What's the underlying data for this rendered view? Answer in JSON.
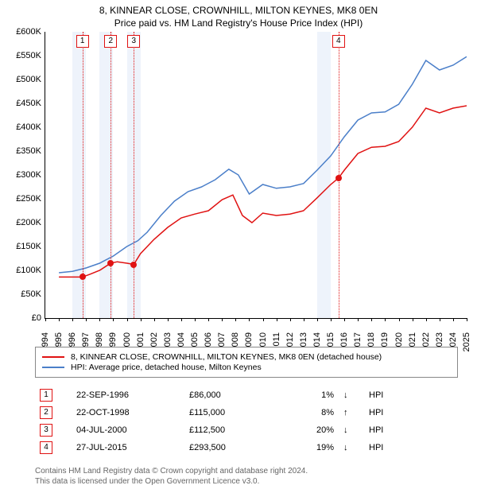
{
  "title_line1": "8, KINNEAR CLOSE, CROWNHILL, MILTON KEYNES, MK8 0EN",
  "title_line2": "Price paid vs. HM Land Registry's House Price Index (HPI)",
  "chart": {
    "type": "line",
    "x_min_year": 1994,
    "x_max_year": 2025,
    "y_min": 0,
    "y_max": 600000,
    "ytick_step": 50000,
    "y_prefix": "£",
    "y_suffix": "K",
    "colors": {
      "series_property": "#e01212",
      "series_hpi": "#4b7fc9",
      "shade": "#eef3fb",
      "axis": "#000000",
      "bg": "#ffffff"
    },
    "line_width": 1.5,
    "shaded_years": [
      1996,
      1998,
      2000,
      2014
    ],
    "series_property": [
      {
        "y": 1995.0,
        "v": 86000
      },
      {
        "y": 1996.73,
        "v": 86000
      },
      {
        "y": 1997.3,
        "v": 92000
      },
      {
        "y": 1998.0,
        "v": 100000
      },
      {
        "y": 1998.81,
        "v": 115000
      },
      {
        "y": 1999.3,
        "v": 118000
      },
      {
        "y": 2000.0,
        "v": 115000
      },
      {
        "y": 2000.51,
        "v": 112500
      },
      {
        "y": 2001.0,
        "v": 135000
      },
      {
        "y": 2002.0,
        "v": 165000
      },
      {
        "y": 2003.0,
        "v": 190000
      },
      {
        "y": 2004.0,
        "v": 210000
      },
      {
        "y": 2005.0,
        "v": 218000
      },
      {
        "y": 2006.0,
        "v": 225000
      },
      {
        "y": 2007.0,
        "v": 248000
      },
      {
        "y": 2007.8,
        "v": 258000
      },
      {
        "y": 2008.5,
        "v": 215000
      },
      {
        "y": 2009.2,
        "v": 200000
      },
      {
        "y": 2010.0,
        "v": 220000
      },
      {
        "y": 2011.0,
        "v": 215000
      },
      {
        "y": 2012.0,
        "v": 218000
      },
      {
        "y": 2013.0,
        "v": 225000
      },
      {
        "y": 2014.0,
        "v": 252000
      },
      {
        "y": 2015.0,
        "v": 280000
      },
      {
        "y": 2015.57,
        "v": 293500
      },
      {
        "y": 2016.0,
        "v": 310000
      },
      {
        "y": 2017.0,
        "v": 345000
      },
      {
        "y": 2018.0,
        "v": 358000
      },
      {
        "y": 2019.0,
        "v": 360000
      },
      {
        "y": 2020.0,
        "v": 370000
      },
      {
        "y": 2021.0,
        "v": 400000
      },
      {
        "y": 2022.0,
        "v": 440000
      },
      {
        "y": 2023.0,
        "v": 430000
      },
      {
        "y": 2024.0,
        "v": 440000
      },
      {
        "y": 2025.0,
        "v": 445000
      }
    ],
    "series_hpi": [
      {
        "y": 1995.0,
        "v": 95000
      },
      {
        "y": 1996.0,
        "v": 98000
      },
      {
        "y": 1997.0,
        "v": 105000
      },
      {
        "y": 1998.0,
        "v": 115000
      },
      {
        "y": 1999.0,
        "v": 130000
      },
      {
        "y": 2000.0,
        "v": 150000
      },
      {
        "y": 2000.8,
        "v": 162000
      },
      {
        "y": 2001.5,
        "v": 180000
      },
      {
        "y": 2002.5,
        "v": 215000
      },
      {
        "y": 2003.5,
        "v": 245000
      },
      {
        "y": 2004.5,
        "v": 265000
      },
      {
        "y": 2005.5,
        "v": 275000
      },
      {
        "y": 2006.5,
        "v": 290000
      },
      {
        "y": 2007.5,
        "v": 312000
      },
      {
        "y": 2008.2,
        "v": 300000
      },
      {
        "y": 2009.0,
        "v": 260000
      },
      {
        "y": 2010.0,
        "v": 280000
      },
      {
        "y": 2011.0,
        "v": 272000
      },
      {
        "y": 2012.0,
        "v": 275000
      },
      {
        "y": 2013.0,
        "v": 282000
      },
      {
        "y": 2014.0,
        "v": 310000
      },
      {
        "y": 2015.0,
        "v": 340000
      },
      {
        "y": 2016.0,
        "v": 380000
      },
      {
        "y": 2017.0,
        "v": 415000
      },
      {
        "y": 2018.0,
        "v": 430000
      },
      {
        "y": 2019.0,
        "v": 432000
      },
      {
        "y": 2020.0,
        "v": 448000
      },
      {
        "y": 2021.0,
        "v": 490000
      },
      {
        "y": 2022.0,
        "v": 540000
      },
      {
        "y": 2023.0,
        "v": 520000
      },
      {
        "y": 2024.0,
        "v": 530000
      },
      {
        "y": 2025.0,
        "v": 548000
      }
    ],
    "markers": [
      {
        "n": "1",
        "year": 1996.73,
        "v": 86000
      },
      {
        "n": "2",
        "year": 1998.81,
        "v": 115000
      },
      {
        "n": "3",
        "year": 2000.51,
        "v": 112500
      },
      {
        "n": "4",
        "year": 2015.57,
        "v": 293500
      }
    ]
  },
  "legend": {
    "row1": "8, KINNEAR CLOSE, CROWNHILL, MILTON KEYNES, MK8 0EN (detached house)",
    "row2": "HPI: Average price, detached house, Milton Keynes"
  },
  "events": [
    {
      "n": "1",
      "date": "22-SEP-1996",
      "price": "£86,000",
      "pct": "1%",
      "dir": "down",
      "tag": "HPI"
    },
    {
      "n": "2",
      "date": "22-OCT-1998",
      "price": "£115,000",
      "pct": "8%",
      "dir": "up",
      "tag": "HPI"
    },
    {
      "n": "3",
      "date": "04-JUL-2000",
      "price": "£112,500",
      "pct": "20%",
      "dir": "down",
      "tag": "HPI"
    },
    {
      "n": "4",
      "date": "27-JUL-2015",
      "price": "£293,500",
      "pct": "19%",
      "dir": "down",
      "tag": "HPI"
    }
  ],
  "footer_line1": "Contains HM Land Registry data © Crown copyright and database right 2024.",
  "footer_line2": "This data is licensed under the Open Government Licence v3.0."
}
